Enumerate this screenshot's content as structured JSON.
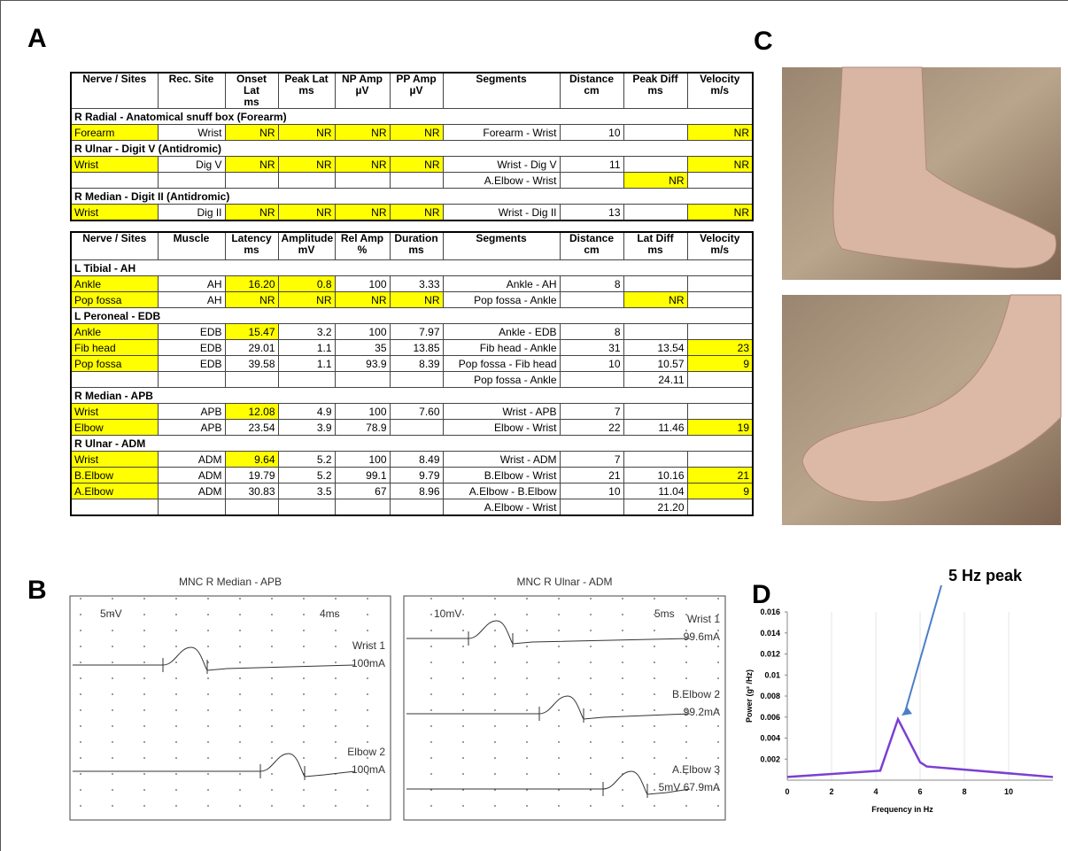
{
  "panel_labels": [
    "A",
    "B",
    "C",
    "D"
  ],
  "highlight_color": "#ffff00",
  "sensory_table": {
    "header": [
      "Nerve / Sites",
      "Rec. Site",
      "Onset Lat\nms",
      "Peak Lat\nms",
      "NP Amp\nµV",
      "PP Amp\nµV",
      "Segments",
      "Distance\ncm",
      "Peak Diff\nms",
      "Velocity\nm/s"
    ],
    "rows": [
      {
        "section": "R Radial - Anatomical snuff box (Forearm)"
      },
      {
        "cells": [
          "Forearm",
          "Wrist",
          "NR",
          "NR",
          "NR",
          "NR",
          "Forearm - Wrist",
          "10",
          null,
          "NR"
        ],
        "highlight": [
          0,
          2,
          3,
          4,
          5,
          9
        ]
      },
      {
        "section": "R Ulnar - Digit V (Antidromic)"
      },
      {
        "cells": [
          "Wrist",
          "Dig V",
          "NR",
          "NR",
          "NR",
          "NR",
          "Wrist - Dig V",
          "11",
          null,
          "NR"
        ],
        "highlight": [
          0,
          2,
          3,
          4,
          5,
          9
        ]
      },
      {
        "cells": [
          null,
          null,
          null,
          null,
          null,
          null,
          "A.Elbow - Wrist",
          null,
          "NR",
          null
        ],
        "highlight": [
          8
        ]
      },
      {
        "section": "R Median - Digit II (Antidromic)"
      },
      {
        "cells": [
          "Wrist",
          "Dig II",
          "NR",
          "NR",
          "NR",
          "NR",
          "Wrist - Dig II",
          "13",
          null,
          "NR"
        ],
        "highlight": [
          0,
          2,
          3,
          4,
          5,
          9
        ]
      }
    ]
  },
  "motor_table": {
    "header": [
      "Nerve / Sites",
      "Muscle",
      "Latency\nms",
      "Amplitude\nmV",
      "Rel Amp\n%",
      "Duration\nms",
      "Segments",
      "Distance\ncm",
      "Lat Diff\nms",
      "Velocity\nm/s"
    ],
    "rows": [
      {
        "section": "L Tibial - AH"
      },
      {
        "cells": [
          "Ankle",
          "AH",
          "16.20",
          "0.8",
          "100",
          "3.33",
          "Ankle - AH",
          "8",
          null,
          null
        ],
        "highlight": [
          0,
          2,
          3
        ]
      },
      {
        "cells": [
          "Pop fossa",
          "AH",
          "NR",
          "NR",
          "NR",
          "NR",
          "Pop fossa - Ankle",
          null,
          "NR",
          null
        ],
        "highlight": [
          0,
          2,
          3,
          4,
          5,
          8
        ]
      },
      {
        "section": "L Peroneal - EDB"
      },
      {
        "cells": [
          "Ankle",
          "EDB",
          "15.47",
          "3.2",
          "100",
          "7.97",
          "Ankle - EDB",
          "8",
          null,
          null
        ],
        "highlight": [
          0,
          2
        ]
      },
      {
        "cells": [
          "Fib head",
          "EDB",
          "29.01",
          "1.1",
          "35",
          "13.85",
          "Fib head - Ankle",
          "31",
          "13.54",
          "23"
        ],
        "highlight": [
          0,
          9
        ]
      },
      {
        "cells": [
          "Pop fossa",
          "EDB",
          "39.58",
          "1.1",
          "93.9",
          "8.39",
          "Pop fossa - Fib head",
          "10",
          "10.57",
          "9"
        ],
        "highlight": [
          0,
          9
        ]
      },
      {
        "cells": [
          null,
          null,
          null,
          null,
          null,
          null,
          "Pop fossa - Ankle",
          null,
          "24.11",
          null
        ],
        "highlight": []
      },
      {
        "section": "R Median - APB"
      },
      {
        "cells": [
          "Wrist",
          "APB",
          "12.08",
          "4.9",
          "100",
          "7.60",
          "Wrist - APB",
          "7",
          null,
          null
        ],
        "highlight": [
          0,
          2
        ]
      },
      {
        "cells": [
          "Elbow",
          "APB",
          "23.54",
          "3.9",
          "78.9",
          null,
          "Elbow - Wrist",
          "22",
          "11.46",
          "19"
        ],
        "highlight": [
          0,
          9
        ]
      },
      {
        "section": "R Ulnar - ADM"
      },
      {
        "cells": [
          "Wrist",
          "ADM",
          "9.64",
          "5.2",
          "100",
          "8.49",
          "Wrist - ADM",
          "7",
          null,
          null
        ],
        "highlight": [
          0,
          2
        ]
      },
      {
        "cells": [
          "B.Elbow",
          "ADM",
          "19.79",
          "5.2",
          "99.1",
          "9.79",
          "B.Elbow - Wrist",
          "21",
          "10.16",
          "21"
        ],
        "highlight": [
          0,
          9
        ]
      },
      {
        "cells": [
          "A.Elbow",
          "ADM",
          "30.83",
          "3.5",
          "67",
          "8.96",
          "A.Elbow - B.Elbow",
          "10",
          "11.04",
          "9"
        ],
        "highlight": [
          0,
          9
        ]
      },
      {
        "cells": [
          null,
          null,
          null,
          null,
          null,
          null,
          "A.Elbow - Wrist",
          null,
          "21.20",
          null
        ],
        "highlight": []
      }
    ]
  },
  "waveforms": [
    {
      "title": "MNC R Median - APB",
      "amplitude_scale": "5mV",
      "time_scale": "4ms",
      "traces": [
        {
          "label": "Wrist 1",
          "stimulus": "100mA"
        },
        {
          "label": "Elbow 2",
          "stimulus": "100mA"
        }
      ]
    },
    {
      "title": "MNC R Ulnar - ADM",
      "amplitude_scale": "10mV",
      "time_scale": "5ms",
      "traces": [
        {
          "label": "Wrist 1",
          "stimulus": "99.6mA"
        },
        {
          "label": "B.Elbow 2",
          "stimulus": "99.2mA"
        },
        {
          "label": "A.Elbow 3",
          "stimulus": "5mV 67.9mA"
        }
      ]
    }
  ],
  "chart_data": {
    "type": "line",
    "xlabel": "Frequency in Hz",
    "ylabel": "Power (g² /Hz)",
    "annotation": "5 Hz peak",
    "x": [
      0,
      4.2,
      5,
      6,
      6.3,
      12
    ],
    "series": [
      {
        "color": "#7b3fd1",
        "values": [
          0.0003,
          0.0009,
          0.0058,
          0.0017,
          0.0013,
          0.0003
        ]
      }
    ],
    "xlim": [
      0,
      12
    ],
    "ylim": [
      0,
      0.016
    ],
    "xticks": [
      0,
      2,
      4,
      6,
      8,
      10
    ],
    "yticks": [
      0.002,
      0.004,
      0.006,
      0.008,
      0.01,
      0.012,
      0.014,
      0.016
    ],
    "grid": true
  }
}
